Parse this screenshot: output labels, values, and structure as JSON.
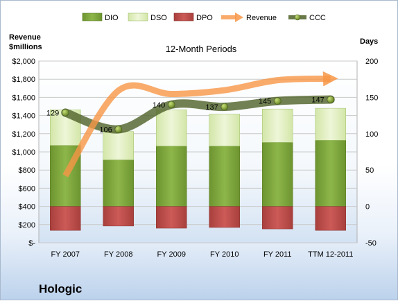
{
  "company": "Hologic",
  "chart_data": {
    "type": "bar",
    "title": "12-Month Periods",
    "y_left_label": [
      "Revenue",
      "$millions"
    ],
    "y_right_label": "Days",
    "categories": [
      "FY 2007",
      "FY 2008",
      "FY 2009",
      "FY 2010",
      "FY 2011",
      "TTM 12-2011"
    ],
    "y_left": {
      "min": 0,
      "max": 2000,
      "step": 200,
      "tick_labels": [
        "$-",
        "$200",
        "$400",
        "$600",
        "$800",
        "$1,000",
        "$1,200",
        "$1,400",
        "$1,600",
        "$1,800",
        "$2,000"
      ]
    },
    "y_right": {
      "min": -50,
      "max": 200,
      "step": 50,
      "tick_labels": [
        "-50",
        "0",
        "50",
        "100",
        "150",
        "200"
      ]
    },
    "legend_position": "top",
    "series": [
      {
        "name": "DIO",
        "type": "stacked-bar",
        "axis": "right",
        "color": "#7ea63a",
        "values": [
          84,
          64,
          83,
          83,
          88,
          91
        ]
      },
      {
        "name": "DSO",
        "type": "stacked-bar",
        "axis": "right",
        "color": "#dfedbf",
        "values": [
          49,
          39,
          50,
          44,
          46,
          44
        ]
      },
      {
        "name": "DPO",
        "type": "bar-negative",
        "axis": "right",
        "color": "#c0504d",
        "values": [
          -33,
          -27,
          -30,
          -29,
          -31,
          -33
        ]
      },
      {
        "name": "Revenue",
        "type": "line",
        "axis": "left",
        "color": "#f79646",
        "values": [
          738,
          1674,
          1637,
          1679,
          1789,
          1806
        ]
      },
      {
        "name": "CCC",
        "type": "line",
        "axis": "right",
        "color": "#4f6228",
        "values": [
          129,
          106,
          140,
          137,
          145,
          147
        ],
        "data_labels": [
          "129",
          "106",
          "140",
          "137",
          "145",
          "147"
        ]
      }
    ]
  }
}
